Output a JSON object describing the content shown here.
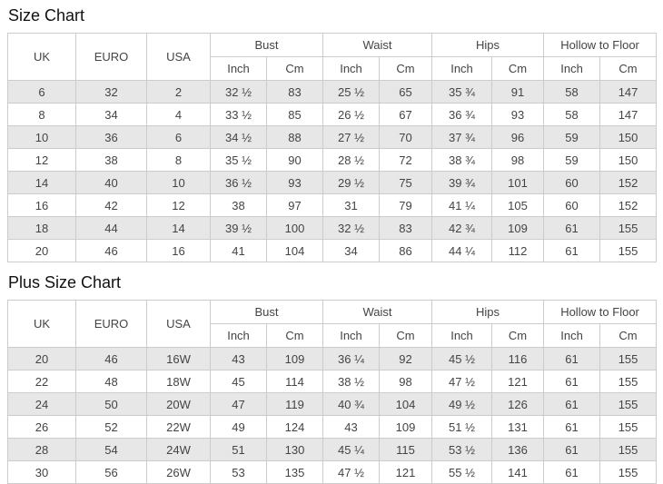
{
  "colors": {
    "stripe": "#e7e7e7",
    "border": "#cccccc",
    "text": "#444444",
    "title": "#111111"
  },
  "size_chart": {
    "title": "Size Chart",
    "main_headers": [
      "UK",
      "EURO",
      "USA"
    ],
    "group_headers": [
      "Bust",
      "Waist",
      "Hips",
      "Hollow to Floor"
    ],
    "sub_headers": [
      "Inch",
      "Cm"
    ],
    "rows": [
      [
        "6",
        "32",
        "2",
        "32 ½",
        "83",
        "25 ½",
        "65",
        "35 ¾",
        "91",
        "58",
        "147"
      ],
      [
        "8",
        "34",
        "4",
        "33 ½",
        "85",
        "26 ½",
        "67",
        "36 ¾",
        "93",
        "58",
        "147"
      ],
      [
        "10",
        "36",
        "6",
        "34 ½",
        "88",
        "27 ½",
        "70",
        "37 ¾",
        "96",
        "59",
        "150"
      ],
      [
        "12",
        "38",
        "8",
        "35 ½",
        "90",
        "28 ½",
        "72",
        "38 ¾",
        "98",
        "59",
        "150"
      ],
      [
        "14",
        "40",
        "10",
        "36 ½",
        "93",
        "29 ½",
        "75",
        "39 ¾",
        "101",
        "60",
        "152"
      ],
      [
        "16",
        "42",
        "12",
        "38",
        "97",
        "31",
        "79",
        "41 ¼",
        "105",
        "60",
        "152"
      ],
      [
        "18",
        "44",
        "14",
        "39 ½",
        "100",
        "32 ½",
        "83",
        "42 ¾",
        "109",
        "61",
        "155"
      ],
      [
        "20",
        "46",
        "16",
        "41",
        "104",
        "34",
        "86",
        "44 ¼",
        "112",
        "61",
        "155"
      ]
    ]
  },
  "plus_size_chart": {
    "title": "Plus Size Chart",
    "main_headers": [
      "UK",
      "EURO",
      "USA"
    ],
    "group_headers": [
      "Bust",
      "Waist",
      "Hips",
      "Hollow to Floor"
    ],
    "sub_headers": [
      "Inch",
      "Cm"
    ],
    "rows": [
      [
        "20",
        "46",
        "16W",
        "43",
        "109",
        "36 ¼",
        "92",
        "45 ½",
        "116",
        "61",
        "155"
      ],
      [
        "22",
        "48",
        "18W",
        "45",
        "114",
        "38 ½",
        "98",
        "47 ½",
        "121",
        "61",
        "155"
      ],
      [
        "24",
        "50",
        "20W",
        "47",
        "119",
        "40 ¾",
        "104",
        "49 ½",
        "126",
        "61",
        "155"
      ],
      [
        "26",
        "52",
        "22W",
        "49",
        "124",
        "43",
        "109",
        "51 ½",
        "131",
        "61",
        "155"
      ],
      [
        "28",
        "54",
        "24W",
        "51",
        "130",
        "45 ¼",
        "115",
        "53 ½",
        "136",
        "61",
        "155"
      ],
      [
        "30",
        "56",
        "26W",
        "53",
        "135",
        "47 ½",
        "121",
        "55 ½",
        "141",
        "61",
        "155"
      ]
    ]
  }
}
